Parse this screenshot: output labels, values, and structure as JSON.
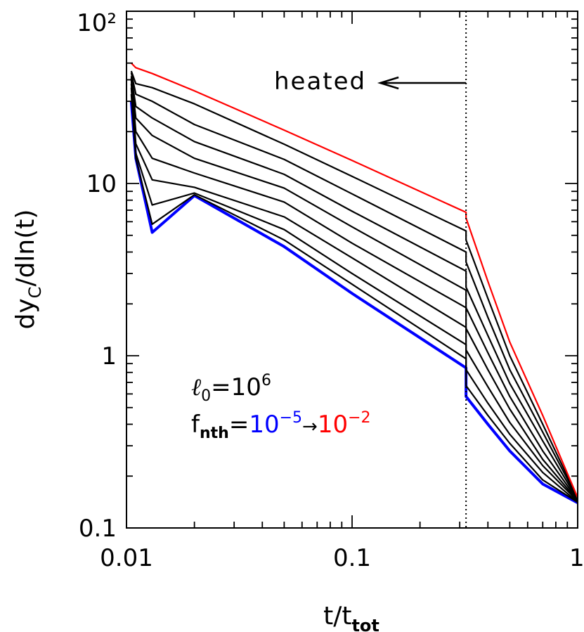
{
  "chart_data": {
    "type": "line",
    "x_scale": "log",
    "y_scale": "log",
    "x_label": [
      "t/t",
      "tot"
    ],
    "y_label": [
      "dy",
      "C",
      "/dln(t)"
    ],
    "xlim": [
      0.01,
      1
    ],
    "ylim": [
      0.1,
      100
    ],
    "xticks": [
      0.01,
      0.1,
      1
    ],
    "yticks": [
      0.1,
      1,
      10,
      {
        "value": 100,
        "label": "10²"
      }
    ],
    "vline": {
      "x": 0.32,
      "style": "dotted"
    },
    "annotations": [
      {
        "text": "heated"
      },
      {
        "parts": [
          "ℓ",
          "0",
          "=10",
          "6"
        ]
      },
      {
        "parts": [
          "f",
          "nth",
          "=",
          "10",
          "−5",
          "→",
          "10",
          "−2"
        ]
      }
    ],
    "x": [
      0.0105,
      0.011,
      0.013,
      0.02,
      0.05,
      0.1,
      0.32,
      0.32,
      0.4,
      0.5,
      0.7,
      1
    ],
    "series": [
      {
        "color": "#0000ff",
        "values": [
          30,
          14,
          5.2,
          8.5,
          4.3,
          2.3,
          0.85,
          0.58,
          0.4,
          0.28,
          0.18,
          0.14
        ]
      },
      {
        "color": "#000000",
        "values": [
          33,
          14,
          5.8,
          8.6,
          4.7,
          2.6,
          0.96,
          0.67,
          0.45,
          0.31,
          0.19,
          0.141
        ]
      },
      {
        "color": "#000000",
        "values": [
          36,
          15,
          7.5,
          8.8,
          5.4,
          3.0,
          1.16,
          0.83,
          0.53,
          0.35,
          0.21,
          0.141
        ]
      },
      {
        "color": "#000000",
        "values": [
          38,
          17,
          10.5,
          9.5,
          6.4,
          3.7,
          1.46,
          1.08,
          0.66,
          0.41,
          0.23,
          0.143
        ]
      },
      {
        "color": "#000000",
        "values": [
          40,
          20,
          14,
          11.5,
          7.8,
          4.5,
          1.9,
          1.44,
          0.83,
          0.49,
          0.25,
          0.144
        ]
      },
      {
        "color": "#000000",
        "values": [
          41,
          24,
          19,
          14,
          9.4,
          5.6,
          2.4,
          1.9,
          1.04,
          0.58,
          0.28,
          0.145
        ]
      },
      {
        "color": "#000000",
        "values": [
          42,
          28,
          24,
          17.5,
          11.3,
          6.9,
          3.1,
          2.5,
          1.31,
          0.69,
          0.32,
          0.146
        ]
      },
      {
        "color": "#000000",
        "values": [
          44,
          33,
          30,
          22,
          13.8,
          8.7,
          4.0,
          3.5,
          1.67,
          0.83,
          0.36,
          0.148
        ]
      },
      {
        "color": "#000000",
        "values": [
          45,
          38,
          36,
          29,
          16.9,
          11.0,
          5.3,
          4.7,
          2.15,
          1.0,
          0.4,
          0.149
        ]
      },
      {
        "color": "#ff0000",
        "values": [
          50,
          47,
          43.5,
          34.5,
          20.4,
          13.6,
          6.8,
          6.3,
          2.7,
          1.2,
          0.45,
          0.15
        ]
      }
    ]
  }
}
